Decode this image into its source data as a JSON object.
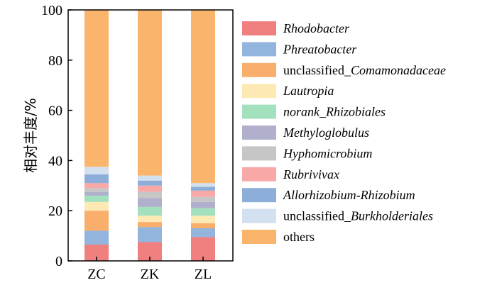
{
  "chart_data": {
    "type": "bar",
    "stacked": true,
    "categories": [
      "ZC",
      "ZK",
      "ZL"
    ],
    "ylabel": "相对丰度/%",
    "ylim": [
      0,
      100
    ],
    "yticks": [
      0,
      20,
      40,
      60,
      80,
      100
    ],
    "legend_position": "right",
    "series": [
      {
        "name": "Rhodobacter",
        "name_parts": [
          {
            "text": "Rhodobacter",
            "italic": true
          }
        ],
        "color": "#f08080",
        "values": [
          6.5,
          7.5,
          9.5
        ]
      },
      {
        "name": "Phreatobacter",
        "name_parts": [
          {
            "text": "Phreatobacter",
            "italic": true
          }
        ],
        "color": "#93b4dc",
        "values": [
          5.5,
          6.0,
          3.5
        ]
      },
      {
        "name": "unclassified_Comamonadaceae",
        "name_parts": [
          {
            "text": "unclassified_",
            "italic": false
          },
          {
            "text": "Comamonadaceae",
            "italic": true
          }
        ],
        "color": "#f9ae6b",
        "values": [
          8.0,
          2.0,
          2.0
        ]
      },
      {
        "name": "Lautropia",
        "name_parts": [
          {
            "text": "Lautropia",
            "italic": true
          }
        ],
        "color": "#fde9b3",
        "values": [
          3.5,
          2.5,
          3.0
        ]
      },
      {
        "name": "norank_Rhizobiales",
        "name_parts": [
          {
            "text": "norank_",
            "italic": true
          },
          {
            "text": "Rhizobiales",
            "italic": true
          }
        ],
        "color": "#a3e0bd",
        "values": [
          2.5,
          3.5,
          3.0
        ]
      },
      {
        "name": "Methyloglobulus",
        "name_parts": [
          {
            "text": "Methyloglobulus",
            "italic": true
          }
        ],
        "color": "#b0b0cc",
        "values": [
          1.5,
          3.5,
          2.5
        ]
      },
      {
        "name": "Hyphomicrobium",
        "name_parts": [
          {
            "text": "Hyphomicrobium",
            "italic": true
          }
        ],
        "color": "#c6c6c6",
        "values": [
          1.5,
          2.5,
          2.0
        ]
      },
      {
        "name": "Rubrivivax",
        "name_parts": [
          {
            "text": "Rubrivivax",
            "italic": true
          }
        ],
        "color": "#f9a8a8",
        "values": [
          2.0,
          2.5,
          2.5
        ]
      },
      {
        "name": "Allorhizobium-Rhizobium",
        "name_parts": [
          {
            "text": "Allorhizobium-Rhizobium",
            "italic": true
          }
        ],
        "color": "#8caed8",
        "values": [
          3.5,
          2.0,
          1.5
        ]
      },
      {
        "name": "unclassified_Burkholderiales",
        "name_parts": [
          {
            "text": "unclassified_",
            "italic": false
          },
          {
            "text": "Burkholderiales",
            "italic": true
          }
        ],
        "color": "#d2e0ef",
        "values": [
          3.0,
          2.0,
          1.5
        ]
      },
      {
        "name": "others",
        "name_parts": [
          {
            "text": "others",
            "italic": false
          }
        ],
        "color": "#fbb46c",
        "values": [
          62.5,
          66.0,
          69.0
        ]
      }
    ]
  }
}
